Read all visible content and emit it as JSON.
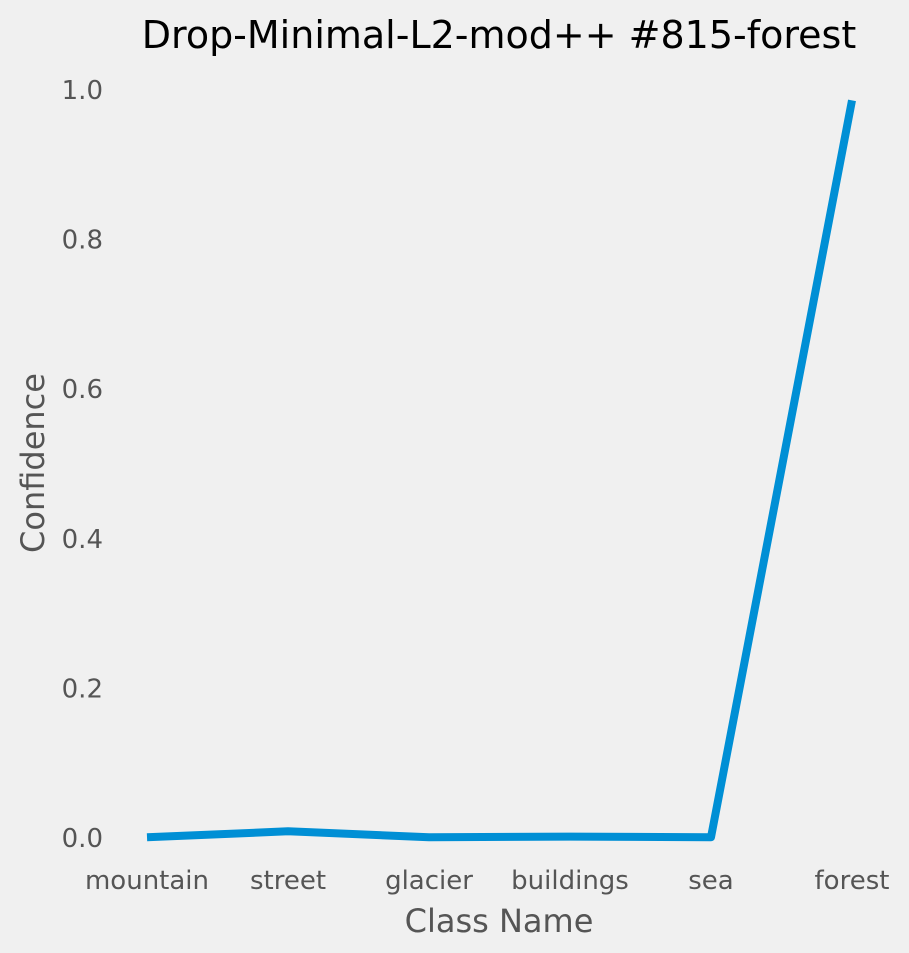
{
  "chart_data": {
    "type": "line",
    "title": "Drop-Minimal-L2-mod++ #815-forest",
    "xlabel": "Class Name",
    "ylabel": "Confidence",
    "categories": [
      "mountain",
      "street",
      "glacier",
      "buildings",
      "sea",
      "forest"
    ],
    "series": [
      {
        "values": [
          0.001,
          0.009,
          0.001,
          0.002,
          0.001,
          0.986
        ],
        "color": "#008fd5"
      }
    ],
    "ylim": [
      -0.04,
      1.04
    ],
    "yticks": [
      "0.0",
      "0.2",
      "0.4",
      "0.6",
      "0.8",
      "1.0"
    ],
    "grid": false,
    "legend": "none",
    "background_color": "#f0f0f0"
  }
}
